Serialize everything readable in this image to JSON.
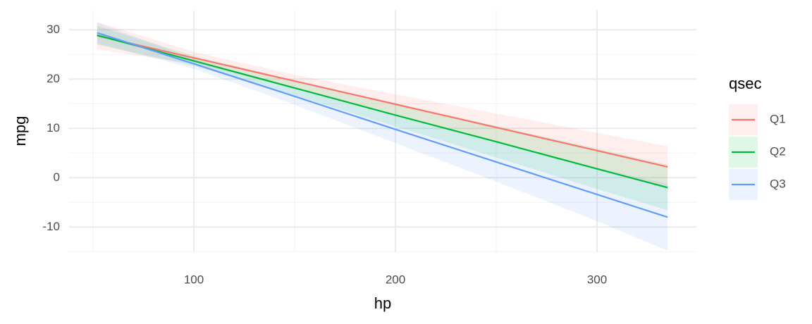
{
  "chart_data": {
    "type": "line",
    "x_label": "hp",
    "y_label": "mpg",
    "legend_title": "qsec",
    "x": [
      52,
      100,
      150,
      200,
      250,
      300,
      335
    ],
    "series": [
      {
        "name": "Q1",
        "color": "#F8766D",
        "values": [
          28.8,
          24.3,
          19.6,
          14.9,
          10.2,
          5.5,
          2.2
        ],
        "lower": [
          26.0,
          23.1,
          18.3,
          12.9,
          7.4,
          1.9,
          -2.0
        ],
        "upper": [
          31.6,
          25.5,
          20.9,
          16.9,
          13.0,
          9.1,
          6.4
        ]
      },
      {
        "name": "Q2",
        "color": "#00BA38",
        "values": [
          28.9,
          23.7,
          18.2,
          12.7,
          7.3,
          1.8,
          -2.0
        ],
        "lower": [
          27.0,
          22.7,
          16.7,
          10.4,
          4.1,
          -2.3,
          -6.6
        ],
        "upper": [
          30.8,
          24.7,
          19.7,
          15.0,
          10.5,
          5.9,
          2.6
        ]
      },
      {
        "name": "Q3",
        "color": "#619CFF",
        "values": [
          29.4,
          23.1,
          16.5,
          9.8,
          3.2,
          -3.4,
          -8.0
        ],
        "lower": [
          27.3,
          22.1,
          14.8,
          7.0,
          -0.8,
          -8.8,
          -14.8
        ],
        "upper": [
          31.5,
          24.1,
          18.2,
          12.6,
          7.2,
          2.0,
          -1.2
        ]
      }
    ],
    "xlim": [
      38.1,
      349.3
    ],
    "ylim": [
      -15.1,
      33.9
    ],
    "xticks": [
      100,
      200,
      300
    ],
    "yticks": [
      -10,
      0,
      10,
      20,
      30
    ],
    "x_minor_grid": [
      50,
      150,
      250
    ],
    "y_minor_grid": [
      -15,
      -5,
      5,
      15,
      25
    ],
    "grid": true,
    "legend_position": "right"
  }
}
